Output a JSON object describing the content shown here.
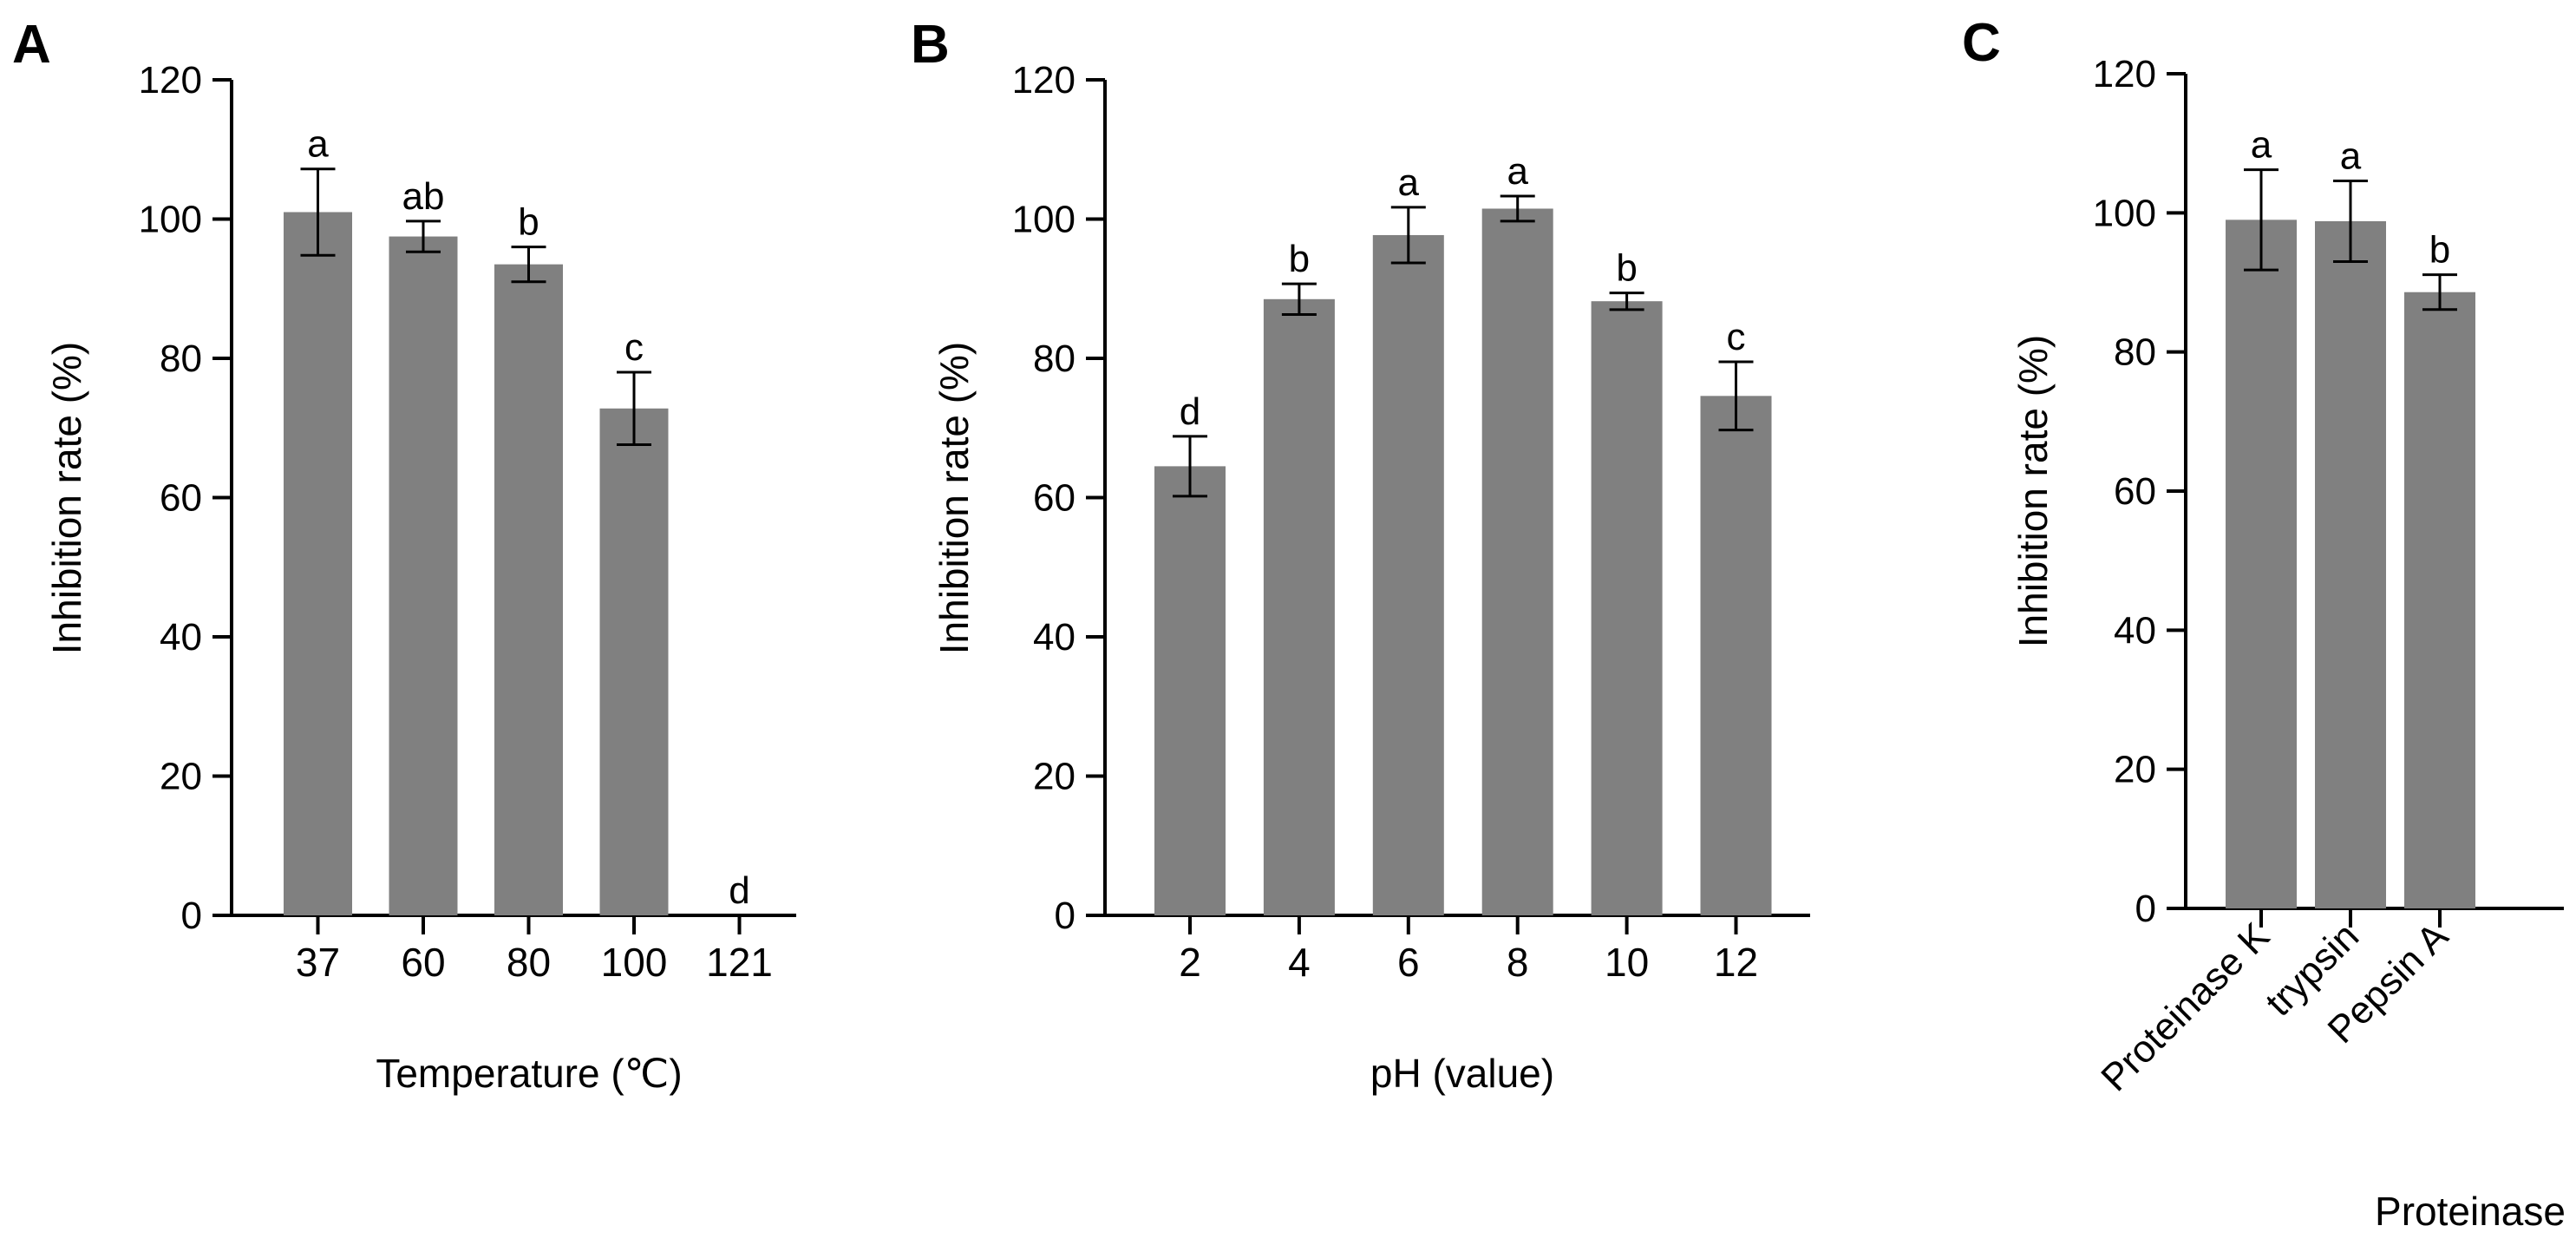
{
  "chart_data": [
    {
      "type": "bar",
      "panel_label": "A",
      "title": "",
      "xlabel": "Temperature (℃)",
      "ylabel": "Inhibition rate (%)",
      "ylim": [
        0,
        120
      ],
      "yticks": [
        "0",
        "20",
        "40",
        "60",
        "80",
        "100",
        "120"
      ],
      "categories": [
        "37",
        "60",
        "80",
        "100",
        "121"
      ],
      "values": [
        101,
        97.5,
        93.5,
        72.8,
        0
      ],
      "errors": [
        6.2,
        2.2,
        2.5,
        5.2,
        0
      ],
      "significance": [
        "a",
        "ab",
        "b",
        "c",
        "d"
      ],
      "bar_color": "#808080",
      "rotate_xticks": false,
      "grid": false
    },
    {
      "type": "bar",
      "panel_label": "B",
      "title": "",
      "xlabel": "pH (value)",
      "ylabel": "Inhibition rate (%)",
      "ylim": [
        0,
        120
      ],
      "yticks": [
        "0",
        "20",
        "40",
        "60",
        "80",
        "100",
        "120"
      ],
      "categories": [
        "2",
        "4",
        "6",
        "8",
        "10",
        "12"
      ],
      "values": [
        64.5,
        88.5,
        97.7,
        101.5,
        88.2,
        74.6
      ],
      "errors": [
        4.3,
        2.2,
        4,
        1.8,
        1.2,
        4.9
      ],
      "significance": [
        "d",
        "b",
        "a",
        "a",
        "b",
        "c"
      ],
      "bar_color": "#808080",
      "rotate_xticks": false,
      "grid": false
    },
    {
      "type": "bar",
      "panel_label": "C",
      "title": "",
      "xlabel": "Proteinase",
      "ylabel": "Inhibition rate (%)",
      "ylim": [
        0,
        120
      ],
      "yticks": [
        "0",
        "20",
        "40",
        "60",
        "80",
        "100",
        "120"
      ],
      "categories": [
        "Proteinase K",
        "trypsin",
        "Pepsin A"
      ],
      "values": [
        99,
        98.8,
        88.6
      ],
      "errors": [
        7.2,
        5.8,
        2.5
      ],
      "significance": [
        "a",
        "a",
        "b"
      ],
      "bar_color": "#808080",
      "rotate_xticks": true,
      "grid": false
    }
  ]
}
